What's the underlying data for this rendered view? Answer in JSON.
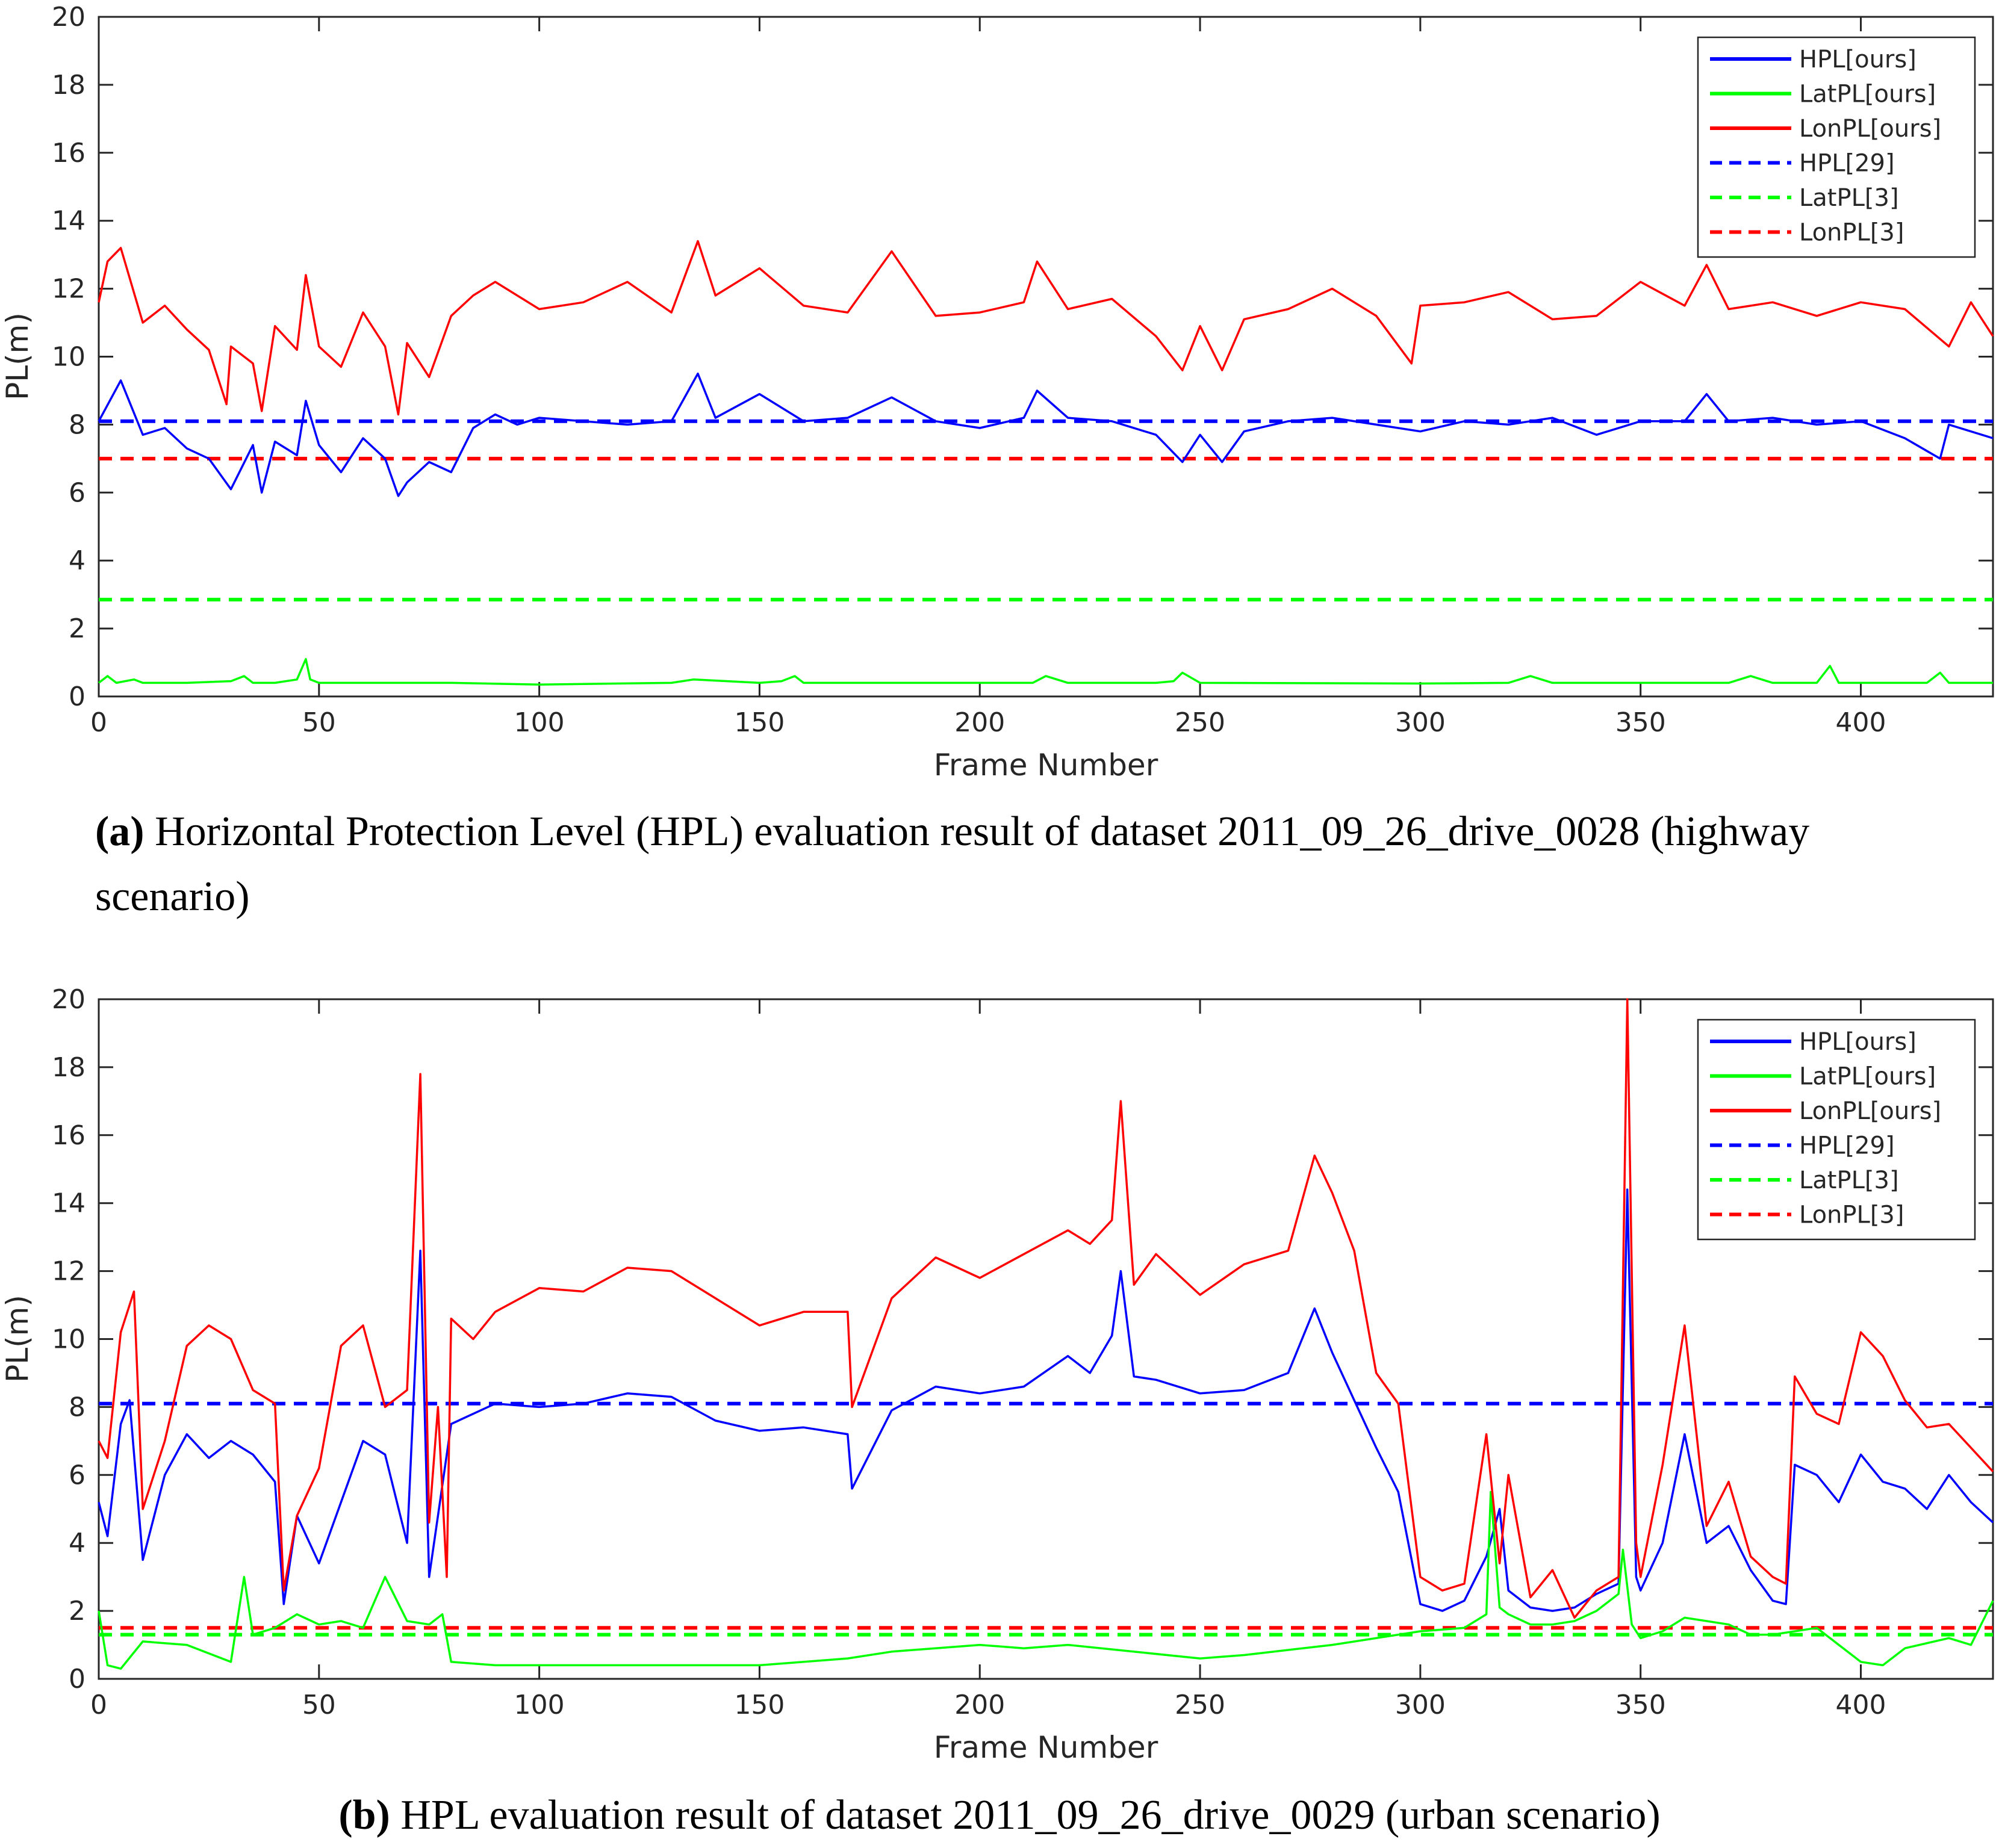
{
  "chart_data": [
    {
      "id": "a",
      "type": "line",
      "xlabel": "Frame Number",
      "ylabel": "PL(m)",
      "xlim": [
        0,
        430
      ],
      "ylim": [
        0,
        20
      ],
      "xticks": [
        0,
        50,
        100,
        150,
        200,
        250,
        300,
        350,
        400
      ],
      "yticks": [
        0,
        2,
        4,
        6,
        8,
        10,
        12,
        14,
        16,
        18,
        20
      ],
      "grid": false,
      "legend_position": "top-right",
      "caption_label": "(a)",
      "caption_text": "Horizontal Protection Level (HPL) evaluation result of dataset 2011_09_26_drive_0028 (highway scenario)",
      "series": [
        {
          "name": "HPL[ours]",
          "color": "#0000ff",
          "style": "solid",
          "x": [
            0,
            5,
            10,
            15,
            20,
            25,
            30,
            35,
            37,
            40,
            45,
            47,
            50,
            55,
            60,
            65,
            68,
            70,
            75,
            80,
            85,
            90,
            95,
            100,
            110,
            120,
            130,
            136,
            140,
            150,
            160,
            170,
            180,
            190,
            200,
            210,
            213,
            220,
            230,
            240,
            246,
            250,
            255,
            260,
            270,
            280,
            290,
            300,
            310,
            320,
            330,
            340,
            350,
            360,
            365,
            370,
            380,
            390,
            400,
            410,
            418,
            420,
            430
          ],
          "values": [
            8.1,
            9.3,
            7.7,
            7.9,
            7.3,
            7.0,
            6.1,
            7.4,
            6.0,
            7.5,
            7.1,
            8.7,
            7.4,
            6.6,
            7.6,
            7.0,
            5.9,
            6.3,
            6.9,
            6.6,
            7.9,
            8.3,
            8.0,
            8.2,
            8.1,
            8.0,
            8.1,
            9.5,
            8.2,
            8.9,
            8.1,
            8.2,
            8.8,
            8.1,
            7.9,
            8.2,
            9.0,
            8.2,
            8.1,
            7.7,
            6.9,
            7.7,
            6.9,
            7.8,
            8.1,
            8.2,
            8.0,
            7.8,
            8.1,
            8.0,
            8.2,
            7.7,
            8.1,
            8.1,
            8.9,
            8.1,
            8.2,
            8.0,
            8.1,
            7.6,
            7.0,
            8.0,
            7.6
          ]
        },
        {
          "name": "LatPL[ours]",
          "color": "#00ff00",
          "style": "solid",
          "x": [
            0,
            2,
            4,
            8,
            10,
            20,
            30,
            33,
            35,
            40,
            45,
            47,
            48,
            50,
            60,
            80,
            100,
            130,
            135,
            150,
            155,
            158,
            160,
            180,
            212,
            215,
            220,
            240,
            244,
            246,
            250,
            300,
            320,
            325,
            330,
            370,
            375,
            380,
            390,
            393,
            395,
            400,
            415,
            418,
            420,
            430
          ],
          "values": [
            0.4,
            0.6,
            0.4,
            0.5,
            0.4,
            0.4,
            0.45,
            0.6,
            0.4,
            0.4,
            0.5,
            1.1,
            0.5,
            0.4,
            0.4,
            0.4,
            0.35,
            0.4,
            0.5,
            0.4,
            0.45,
            0.6,
            0.4,
            0.4,
            0.4,
            0.6,
            0.4,
            0.4,
            0.45,
            0.7,
            0.4,
            0.38,
            0.4,
            0.6,
            0.4,
            0.4,
            0.6,
            0.4,
            0.4,
            0.9,
            0.4,
            0.4,
            0.4,
            0.7,
            0.4,
            0.4
          ]
        },
        {
          "name": "LonPL[ours]",
          "color": "#ff0000",
          "style": "solid",
          "x": [
            0,
            2,
            5,
            10,
            15,
            20,
            25,
            29,
            30,
            35,
            37,
            40,
            45,
            47,
            50,
            55,
            60,
            65,
            68,
            70,
            75,
            80,
            85,
            90,
            100,
            110,
            120,
            130,
            136,
            140,
            150,
            160,
            170,
            180,
            190,
            200,
            210,
            213,
            220,
            230,
            240,
            246,
            250,
            255,
            260,
            270,
            280,
            290,
            298,
            300,
            310,
            320,
            330,
            340,
            350,
            360,
            365,
            370,
            380,
            390,
            400,
            410,
            420,
            425,
            430
          ],
          "values": [
            11.6,
            12.8,
            13.2,
            11.0,
            11.5,
            10.8,
            10.2,
            8.6,
            10.3,
            9.8,
            8.4,
            10.9,
            10.2,
            12.4,
            10.3,
            9.7,
            11.3,
            10.3,
            8.3,
            10.4,
            9.4,
            11.2,
            11.8,
            12.2,
            11.4,
            11.6,
            12.2,
            11.3,
            13.4,
            11.8,
            12.6,
            11.5,
            11.3,
            13.1,
            11.2,
            11.3,
            11.6,
            12.8,
            11.4,
            11.7,
            10.6,
            9.6,
            10.9,
            9.6,
            11.1,
            11.4,
            12.0,
            11.2,
            9.8,
            11.5,
            11.6,
            11.9,
            11.1,
            11.2,
            12.2,
            11.5,
            12.7,
            11.4,
            11.6,
            11.2,
            11.6,
            11.4,
            10.3,
            11.6,
            10.6
          ]
        },
        {
          "name": "HPL[29]",
          "color": "#0000ff",
          "style": "dashed",
          "x": [
            0,
            430
          ],
          "values": [
            8.1,
            8.1
          ]
        },
        {
          "name": "LatPL[3]",
          "color": "#00ff00",
          "style": "dashed",
          "x": [
            0,
            430
          ],
          "values": [
            2.85,
            2.85
          ]
        },
        {
          "name": "LonPL[3]",
          "color": "#ff0000",
          "style": "dashed",
          "x": [
            0,
            430
          ],
          "values": [
            7.0,
            7.0
          ]
        }
      ]
    },
    {
      "id": "b",
      "type": "line",
      "xlabel": "Frame Number",
      "ylabel": "PL(m)",
      "xlim": [
        0,
        430
      ],
      "ylim": [
        0,
        20
      ],
      "xticks": [
        0,
        50,
        100,
        150,
        200,
        250,
        300,
        350,
        400
      ],
      "yticks": [
        0,
        2,
        4,
        6,
        8,
        10,
        12,
        14,
        16,
        18,
        20
      ],
      "grid": false,
      "legend_position": "top-right",
      "caption_label": "(b)",
      "caption_text": "HPL evaluation result of dataset 2011_09_26_drive_0029 (urban scenario)",
      "series": [
        {
          "name": "HPL[ours]",
          "color": "#0000ff",
          "style": "solid",
          "x": [
            0,
            2,
            5,
            7,
            10,
            15,
            20,
            25,
            30,
            35,
            40,
            42,
            45,
            50,
            55,
            60,
            65,
            70,
            73,
            75,
            77,
            80,
            85,
            90,
            100,
            110,
            120,
            130,
            140,
            150,
            160,
            170,
            171,
            180,
            190,
            200,
            210,
            220,
            225,
            230,
            232,
            235,
            240,
            250,
            260,
            270,
            276,
            280,
            285,
            290,
            295,
            300,
            305,
            310,
            315,
            318,
            320,
            325,
            330,
            335,
            340,
            345,
            347,
            349,
            350,
            355,
            360,
            365,
            370,
            375,
            380,
            383,
            385,
            390,
            395,
            400,
            405,
            410,
            415,
            420,
            425,
            430
          ],
          "values": [
            5.2,
            4.2,
            7.5,
            8.2,
            3.5,
            6.0,
            7.2,
            6.5,
            7.0,
            6.6,
            5.8,
            2.2,
            4.8,
            3.4,
            5.2,
            7.0,
            6.6,
            4.0,
            12.6,
            3.0,
            4.8,
            7.5,
            7.8,
            8.1,
            8.0,
            8.1,
            8.4,
            8.3,
            7.6,
            7.3,
            7.4,
            7.2,
            5.6,
            7.9,
            8.6,
            8.4,
            8.6,
            9.5,
            9.0,
            10.1,
            12.0,
            8.9,
            8.8,
            8.4,
            8.5,
            9.0,
            10.9,
            9.6,
            8.2,
            6.8,
            5.5,
            2.2,
            2.0,
            2.3,
            3.6,
            5.0,
            2.6,
            2.1,
            2.0,
            2.1,
            2.5,
            2.8,
            14.4,
            3.0,
            2.6,
            4.0,
            7.2,
            4.0,
            4.5,
            3.2,
            2.3,
            2.2,
            6.3,
            6.0,
            5.2,
            6.6,
            5.8,
            5.6,
            5.0,
            6.0,
            5.2,
            4.6
          ]
        },
        {
          "name": "LatPL[ours]",
          "color": "#00ff00",
          "style": "solid",
          "x": [
            0,
            2,
            5,
            10,
            20,
            30,
            33,
            35,
            40,
            45,
            50,
            55,
            60,
            65,
            70,
            75,
            78,
            80,
            90,
            100,
            120,
            150,
            170,
            180,
            200,
            210,
            220,
            250,
            260,
            280,
            300,
            310,
            315,
            316,
            318,
            320,
            325,
            330,
            335,
            340,
            345,
            346,
            348,
            350,
            355,
            360,
            370,
            375,
            380,
            390,
            400,
            405,
            410,
            420,
            425,
            430
          ],
          "values": [
            2.0,
            0.4,
            0.3,
            1.1,
            1.0,
            0.5,
            3.0,
            1.3,
            1.5,
            1.9,
            1.6,
            1.7,
            1.5,
            3.0,
            1.7,
            1.6,
            1.9,
            0.5,
            0.4,
            0.4,
            0.4,
            0.4,
            0.6,
            0.8,
            1.0,
            0.9,
            1.0,
            0.6,
            0.7,
            1.0,
            1.4,
            1.5,
            1.9,
            5.5,
            2.1,
            1.9,
            1.6,
            1.6,
            1.7,
            2.0,
            2.5,
            3.8,
            1.6,
            1.2,
            1.4,
            1.8,
            1.6,
            1.3,
            1.3,
            1.5,
            0.5,
            0.4,
            0.9,
            1.2,
            1.0,
            2.3
          ]
        },
        {
          "name": "LonPL[ours]",
          "color": "#ff0000",
          "style": "solid",
          "x": [
            0,
            2,
            5,
            8,
            10,
            15,
            20,
            25,
            30,
            35,
            40,
            42,
            45,
            50,
            55,
            60,
            65,
            70,
            73,
            75,
            77,
            79,
            80,
            85,
            90,
            100,
            110,
            120,
            130,
            140,
            150,
            160,
            170,
            171,
            180,
            190,
            200,
            210,
            220,
            225,
            230,
            232,
            235,
            240,
            250,
            260,
            270,
            276,
            280,
            285,
            290,
            295,
            300,
            305,
            310,
            315,
            318,
            320,
            325,
            330,
            335,
            340,
            345,
            347,
            349,
            350,
            355,
            360,
            365,
            370,
            375,
            380,
            383,
            385,
            390,
            395,
            400,
            405,
            410,
            415,
            420,
            425,
            430
          ],
          "values": [
            7.0,
            6.5,
            10.2,
            11.4,
            5.0,
            7.0,
            9.8,
            10.4,
            10.0,
            8.5,
            8.1,
            2.6,
            4.8,
            6.2,
            9.8,
            10.4,
            8.0,
            8.5,
            17.8,
            4.6,
            8.0,
            3.0,
            10.6,
            10.0,
            10.8,
            11.5,
            11.4,
            12.1,
            12.0,
            11.2,
            10.4,
            10.8,
            10.8,
            8.0,
            11.2,
            12.4,
            11.8,
            12.5,
            13.2,
            12.8,
            13.5,
            17.0,
            11.6,
            12.5,
            11.3,
            12.2,
            12.6,
            15.4,
            14.3,
            12.6,
            9.0,
            8.1,
            3.0,
            2.6,
            2.8,
            7.2,
            3.4,
            6.0,
            2.4,
            3.2,
            1.8,
            2.6,
            3.0,
            20.0,
            4.0,
            3.0,
            6.3,
            10.4,
            4.5,
            5.8,
            3.6,
            3.0,
            2.8,
            8.9,
            7.8,
            7.5,
            10.2,
            9.5,
            8.2,
            7.4,
            7.5,
            6.8,
            6.1
          ]
        },
        {
          "name": "HPL[29]",
          "color": "#0000ff",
          "style": "dashed",
          "x": [
            0,
            430
          ],
          "values": [
            8.1,
            8.1
          ]
        },
        {
          "name": "LatPL[3]",
          "color": "#00ff00",
          "style": "dashed",
          "x": [
            0,
            430
          ],
          "values": [
            1.3,
            1.3
          ]
        },
        {
          "name": "LonPL[3]",
          "color": "#ff0000",
          "style": "dashed",
          "x": [
            0,
            430
          ],
          "values": [
            1.5,
            1.5
          ]
        }
      ]
    }
  ]
}
